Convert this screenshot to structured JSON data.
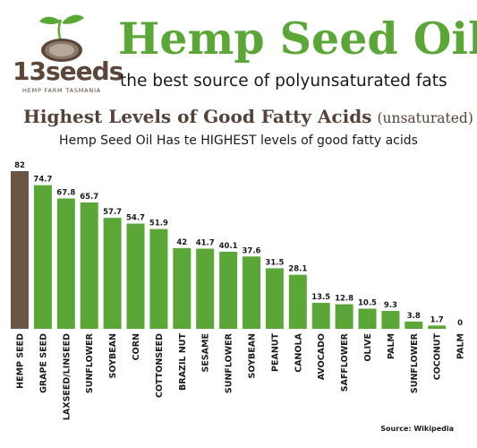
{
  "brand": {
    "logo_text": "13seeds",
    "logo_sub": "HEMP FARM TASMANIA"
  },
  "header": {
    "title": "Hemp Seed Oil",
    "subtitle": "the best source of polyunsaturated fats"
  },
  "section": {
    "heading": "Highest Levels of Good Fatty Acids",
    "heading_note": "(unsaturated)",
    "caption": "Hemp Seed Oil Has te HIGHEST levels of good fatty acids"
  },
  "source": "Source: Wikipedia",
  "colors": {
    "title_green": "#5aa738",
    "bar_green": "#5aa738",
    "highlight_brown": "#6b5545",
    "heading_brown": "#55433a"
  },
  "chart_data": {
    "type": "bar",
    "title": "",
    "xlabel": "",
    "ylabel": "",
    "ylim": [
      0,
      82
    ],
    "categories": [
      "HEMP SEED",
      "GRAPE SEED",
      "FLAXSEED/LINSEED",
      "SUNFLOWER",
      "SOYBEAN",
      "CORN",
      "COTTONSEED",
      "BRAZIL NUT",
      "SESAME",
      "SUNFLOWER",
      "SOYBEAN",
      "PEANUT",
      "CANOLA",
      "AVOCADO",
      "SAFFLOWER",
      "OLIVE",
      "PALM",
      "SUNFLOWER",
      "COCONUT",
      "PALM"
    ],
    "values": [
      82,
      74.7,
      67.8,
      65.7,
      57.7,
      54.7,
      51.9,
      42,
      41.7,
      40.1,
      37.6,
      31.5,
      28.1,
      13.5,
      12.8,
      10.5,
      9.3,
      3.8,
      1.7,
      0
    ],
    "value_labels": [
      "82",
      "74.7",
      "67.8",
      "65.7",
      "57.7",
      "54.7",
      "51.9",
      "42",
      "41.7",
      "40.1",
      "37.6",
      "31.5",
      "28.1",
      "13.5",
      "12.8",
      "10.5",
      "9.3",
      "3.8",
      "1.7",
      "0"
    ],
    "highlight_index": 0,
    "grid": false,
    "legend": "none"
  }
}
